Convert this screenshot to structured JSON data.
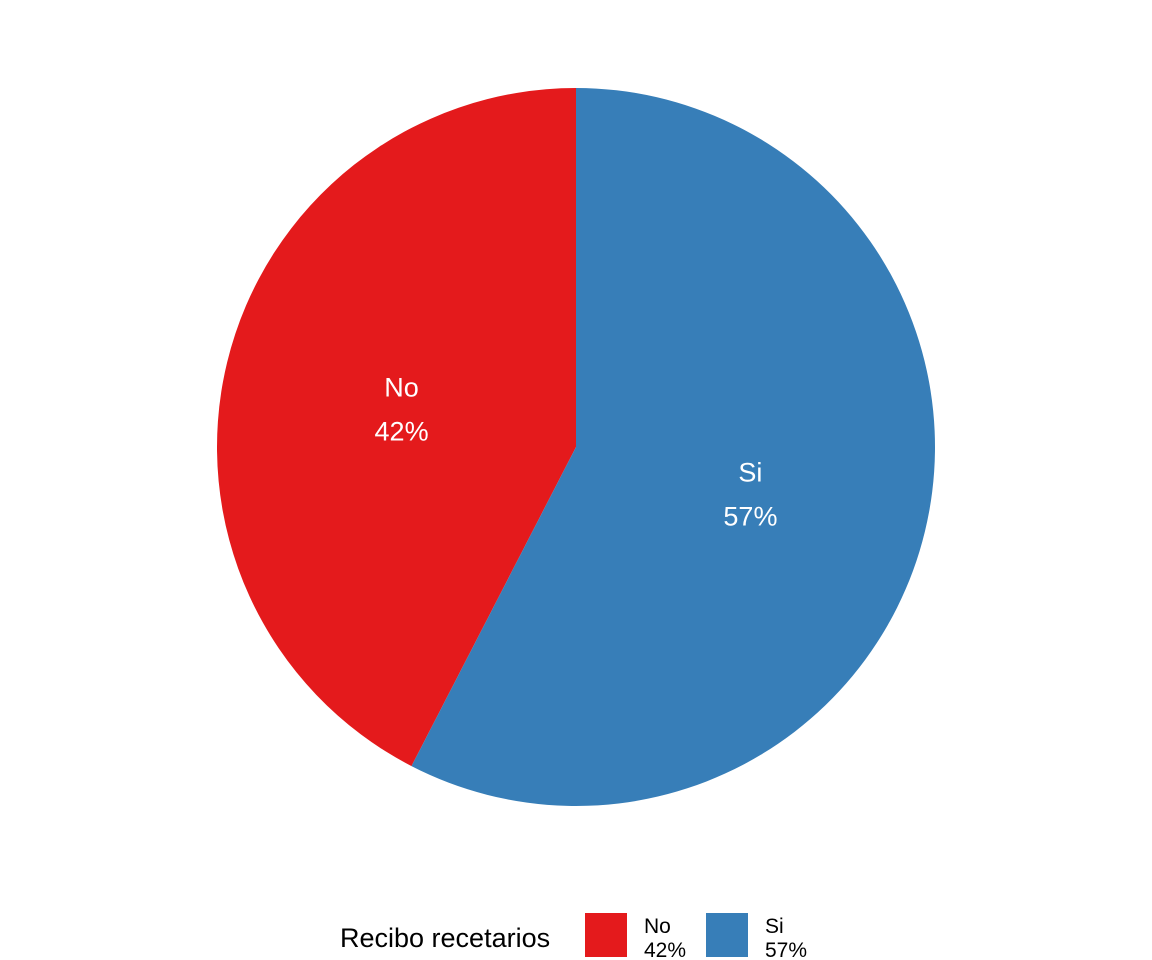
{
  "chart_data": {
    "type": "pie",
    "legend_title": "Recibo recetarios",
    "legend_position": "bottom",
    "slices": [
      {
        "label": "No",
        "percent_label": "42%",
        "value": 42,
        "color": "#E41A1C"
      },
      {
        "label": "Si",
        "percent_label": "57%",
        "value": 57,
        "color": "#377EB8"
      }
    ]
  }
}
